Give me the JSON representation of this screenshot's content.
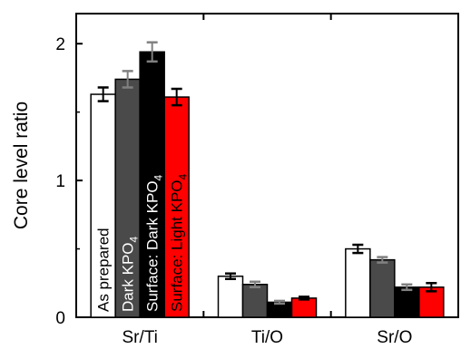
{
  "chart_data": {
    "type": "bar",
    "title": "",
    "xlabel": "",
    "ylabel": "Core level ratio",
    "ylim": [
      0,
      2.22
    ],
    "yticks": [
      0,
      1,
      2
    ],
    "grid": false,
    "legend": "none (series names printed vertically inside the Sr/Ti bars)",
    "categories": [
      "Sr/Ti",
      "Ti/O",
      "Sr/O"
    ],
    "series": [
      {
        "name": "As prepared",
        "label_main": "As prepared",
        "label_sub": "",
        "label_tail": "",
        "color": "#ffffff",
        "label_color": "#000000",
        "errorbar_color": "#000000",
        "values": [
          1.63,
          0.3,
          0.5
        ],
        "errors": [
          0.05,
          0.02,
          0.03
        ]
      },
      {
        "name": "Dark KPO4",
        "label_main": "Dark KPO",
        "label_sub": "4",
        "label_tail": "",
        "color": "#4a4a4a",
        "label_color": "#ffffff",
        "errorbar_color": "#808080",
        "values": [
          1.74,
          0.24,
          0.42
        ],
        "errors": [
          0.06,
          0.02,
          0.02
        ]
      },
      {
        "name": "Surface: Dark KPO4",
        "label_main": "Surface: Dark KPO",
        "label_sub": "4",
        "label_tail": "",
        "color": "#000000",
        "label_color": "#ffffff",
        "errorbar_color": "#808080",
        "values": [
          1.94,
          0.11,
          0.22
        ],
        "errors": [
          0.07,
          0.01,
          0.02
        ]
      },
      {
        "name": "Surface: Light KPO4",
        "label_main": "Surface: Light KPO",
        "label_sub": "4",
        "label_tail": "",
        "color": "#ff0000",
        "label_color": "#000000",
        "errorbar_color": "#000000",
        "values": [
          1.61,
          0.14,
          0.22
        ],
        "errors": [
          0.06,
          0.01,
          0.03
        ]
      }
    ]
  }
}
